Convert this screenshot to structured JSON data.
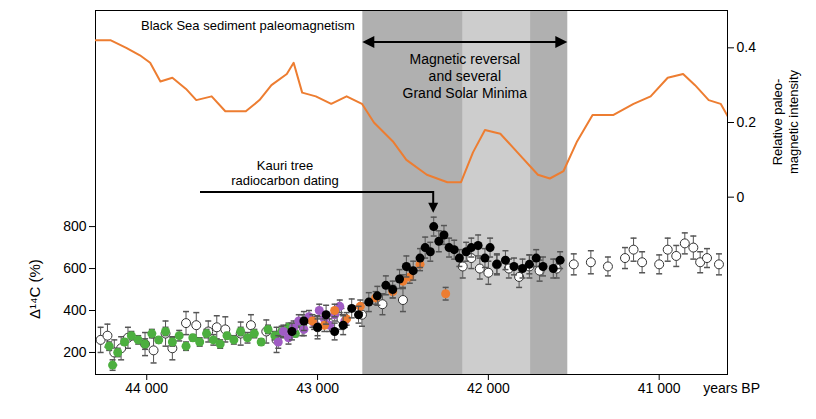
{
  "chart_data": {
    "type": "scatter",
    "annotations": [
      "Black Sea sediment paleomagnetism",
      "Magnetic reversal\nand several\nGrand Solar Minima",
      "Kauri tree\nradiocarbon dating"
    ],
    "x_label": "years BP",
    "y_label": "Δ¹⁴C (%)",
    "y2_label": "Relative paleo-\nmagnetic intensity",
    "xlim": [
      44300,
      40600
    ],
    "xticks": [
      {
        "value": 44000,
        "label": "44 000"
      },
      {
        "value": 43000,
        "label": "43 000"
      },
      {
        "value": 42000,
        "label": "42 000"
      },
      {
        "value": 41000,
        "label": "41 000"
      }
    ],
    "ylim": [
      95,
      1830
    ],
    "yticks": [
      200,
      400,
      600,
      800
    ],
    "y2lim": [
      -0.475,
      0.5
    ],
    "y2ticks": [
      0,
      0.2,
      0.4
    ],
    "grid": false,
    "bands": [
      {
        "x1": 42735,
        "x2": 42147,
        "color": "#b0b0b0"
      },
      {
        "x1": 42147,
        "x2": 41753,
        "color": "#cdcdcd"
      },
      {
        "x1": 41753,
        "x2": 41535,
        "color": "#b0b0b0"
      }
    ],
    "series": [
      {
        "type": "scatter",
        "color": "#ffffff",
        "marker": "open circle",
        "x": [
          44270,
          44230,
          44190,
          44150,
          44110,
          44010,
          43960,
          43890,
          43850,
          43770,
          43710,
          43640,
          43590,
          43540,
          43450,
          43390,
          43300,
          43240,
          43090,
          43000,
          42860,
          42740,
          42620,
          42500,
          42150,
          42100,
          42050,
          42000,
          41950,
          41880,
          41820,
          41760,
          41700,
          41600,
          41500,
          41400,
          41300,
          41200,
          41150,
          41100,
          41000,
          40950,
          40900,
          40850,
          40800,
          40760,
          40720,
          40650
        ],
        "values": [
          260,
          280,
          200,
          220,
          270,
          240,
          210,
          290,
          220,
          340,
          330,
          300,
          320,
          310,
          290,
          330,
          300,
          260,
          330,
          320,
          360,
          380,
          430,
          450,
          610,
          650,
          600,
          580,
          620,
          600,
          560,
          610,
          590,
          600,
          620,
          630,
          610,
          650,
          690,
          630,
          620,
          690,
          660,
          720,
          700,
          630,
          650,
          620
        ],
        "errors": [
          60,
          55,
          60,
          55,
          50,
          55,
          60,
          60,
          55,
          55,
          60,
          50,
          55,
          60,
          55,
          50,
          55,
          60,
          50,
          55,
          50,
          55,
          50,
          55,
          55,
          50,
          50,
          55,
          50,
          45,
          50,
          55,
          50,
          45,
          50,
          55,
          45,
          50,
          55,
          50,
          45,
          55,
          50,
          50,
          55,
          50,
          45,
          50
        ]
      },
      {
        "type": "scatter",
        "color": "#4caf3f",
        "marker": "circle",
        "x": [
          44220,
          44200,
          44170,
          44130,
          44090,
          44050,
          44010,
          43970,
          43930,
          43890,
          43850,
          43810,
          43770,
          43730,
          43690,
          43650,
          43610,
          43570,
          43530,
          43490,
          43450,
          43410,
          43370,
          43330,
          43290,
          43250,
          43210,
          43170,
          43130,
          43090
        ],
        "values": [
          230,
          140,
          200,
          250,
          280,
          260,
          240,
          290,
          260,
          300,
          250,
          280,
          230,
          270,
          250,
          290,
          260,
          240,
          280,
          260,
          300,
          270,
          290,
          250,
          310,
          280,
          300,
          320,
          290,
          330
        ],
        "errors": [
          20,
          25,
          20,
          15,
          20,
          20,
          25,
          20,
          15,
          20,
          20,
          25,
          20,
          15,
          20,
          20,
          25,
          20,
          15,
          20,
          20,
          25,
          20,
          15,
          20,
          20,
          25,
          20,
          15,
          20
        ]
      },
      {
        "type": "scatter",
        "color": "#a05cc4",
        "marker": "circle",
        "x": [
          43230,
          43200,
          43170,
          43140,
          43110,
          43080,
          43050,
          43020,
          42990,
          42960,
          42930,
          42900,
          42870,
          42840
        ],
        "values": [
          250,
          300,
          270,
          320,
          350,
          310,
          370,
          340,
          400,
          360,
          330,
          380,
          420,
          350
        ],
        "errors": [
          30,
          30,
          30,
          30,
          30,
          30,
          30,
          30,
          30,
          30,
          30,
          30,
          30,
          30
        ]
      },
      {
        "type": "scatter",
        "color": "#ed7d31",
        "marker": "circle",
        "x": [
          43030,
          42960,
          42900,
          42830,
          42750,
          42660,
          42560,
          42500,
          42460,
          42400,
          42250
        ],
        "values": [
          350,
          330,
          400,
          360,
          420,
          460,
          490,
          540,
          560,
          620,
          480
        ],
        "errors": [
          30,
          30,
          30,
          30,
          30,
          30,
          30,
          30,
          30,
          30,
          30
        ]
      },
      {
        "type": "scatter",
        "color": "#000000",
        "marker": "circle",
        "x": [
          43150,
          43080,
          43000,
          42950,
          42900,
          42850,
          42800,
          42760,
          42700,
          42650,
          42600,
          42560,
          42520,
          42480,
          42440,
          42400,
          42370,
          42340,
          42320,
          42290,
          42260,
          42230,
          42200,
          42170,
          42130,
          42100,
          42060,
          42020,
          41990,
          41950,
          41900,
          41850,
          41800,
          41760,
          41720,
          41680,
          41620,
          41580
        ],
        "values": [
          300,
          350,
          320,
          380,
          300,
          330,
          410,
          380,
          440,
          470,
          520,
          500,
          550,
          610,
          590,
          650,
          700,
          680,
          800,
          730,
          760,
          700,
          690,
          650,
          680,
          700,
          710,
          650,
          700,
          620,
          640,
          610,
          600,
          620,
          650,
          610,
          600,
          640
        ],
        "errors": [
          40,
          45,
          40,
          45,
          40,
          45,
          45,
          40,
          45,
          45,
          45,
          40,
          45,
          50,
          45,
          45,
          50,
          45,
          45,
          50,
          45,
          45,
          45,
          40,
          45,
          45,
          50,
          45,
          45,
          45,
          45,
          40,
          45,
          45,
          40,
          45,
          45,
          40
        ]
      },
      {
        "type": "line",
        "axis": "y2",
        "color": "#ed7d31",
        "x": [
          44300,
          44210,
          44120,
          44040,
          43980,
          43920,
          43850,
          43770,
          43710,
          43620,
          43540,
          43420,
          43340,
          43270,
          43180,
          43140,
          43090,
          43010,
          42920,
          42830,
          42740,
          42670,
          42560,
          42480,
          42360,
          42240,
          42160,
          42090,
          42020,
          41930,
          41830,
          41710,
          41640,
          41560,
          41480,
          41390,
          41270,
          41150,
          41050,
          40950,
          40860,
          40790,
          40710,
          40640,
          40590
        ],
        "values": [
          0.42,
          0.42,
          0.4,
          0.38,
          0.36,
          0.31,
          0.32,
          0.29,
          0.26,
          0.27,
          0.23,
          0.23,
          0.26,
          0.3,
          0.33,
          0.36,
          0.28,
          0.27,
          0.25,
          0.27,
          0.25,
          0.2,
          0.15,
          0.1,
          0.06,
          0.04,
          0.04,
          0.12,
          0.18,
          0.17,
          0.12,
          0.06,
          0.05,
          0.07,
          0.15,
          0.22,
          0.22,
          0.25,
          0.27,
          0.32,
          0.33,
          0.3,
          0.26,
          0.25,
          0.21
        ]
      }
    ]
  }
}
